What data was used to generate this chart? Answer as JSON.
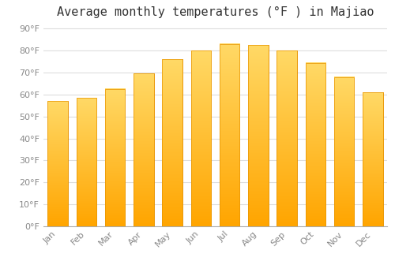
{
  "title": "Average monthly temperatures (°F ) in Majiao",
  "months": [
    "Jan",
    "Feb",
    "Mar",
    "Apr",
    "May",
    "Jun",
    "Jul",
    "Aug",
    "Sep",
    "Oct",
    "Nov",
    "Dec"
  ],
  "values": [
    57,
    58.5,
    62.5,
    69.5,
    76,
    80,
    83,
    82.5,
    80,
    74.5,
    68,
    61
  ],
  "bar_color_top": "#FFD966",
  "bar_color_bottom": "#FFA500",
  "bar_edge_color": "#E89400",
  "background_color": "#FFFFFF",
  "grid_color": "#DDDDDD",
  "yticks": [
    0,
    10,
    20,
    30,
    40,
    50,
    60,
    70,
    80,
    90
  ],
  "ylim": [
    0,
    93
  ],
  "title_fontsize": 11,
  "tick_fontsize": 8,
  "tick_color": "#888888",
  "title_color": "#333333"
}
